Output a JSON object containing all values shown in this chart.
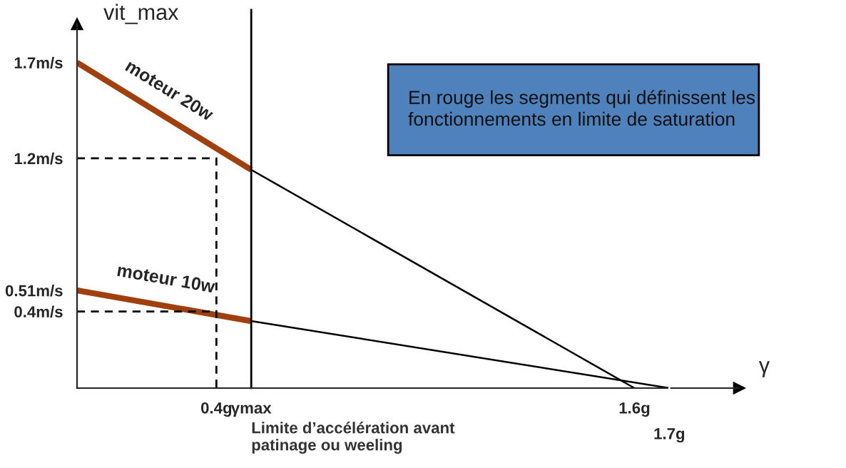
{
  "chart_data": {
    "type": "line",
    "xlabel": "γ",
    "ylabel": "vit_max",
    "xlim": [
      0,
      1.9
    ],
    "ylim": [
      0,
      1.9
    ],
    "xticks": [
      {
        "value": 0.4,
        "label": "0.4g"
      },
      {
        "value": 0.5,
        "label": "γmax"
      },
      {
        "value": 1.6,
        "label": "1.6g"
      }
    ],
    "yticks": [
      {
        "value": 0.4,
        "label": "0.4m/s"
      },
      {
        "value": 0.51,
        "label": "0.51m/s"
      },
      {
        "value": 1.2,
        "label": "1.2m/s"
      },
      {
        "value": 1.7,
        "label": "1.7m/s"
      }
    ],
    "series": [
      {
        "name": "moteur 20w",
        "color": "#a0400f",
        "x": [
          0,
          0.5
        ],
        "values": [
          1.7,
          1.14
        ]
      },
      {
        "color": "#000000",
        "x": [
          0.5,
          1.6
        ],
        "values": [
          1.14,
          0
        ]
      },
      {
        "name": "moteur 10w",
        "color": "#a0400f",
        "x": [
          0,
          0.5
        ],
        "values": [
          0.51,
          0.35
        ]
      },
      {
        "color": "#000000",
        "x": [
          0.5,
          1.7
        ],
        "values": [
          0.35,
          0
        ]
      },
      {
        "color": "#000000",
        "line_style": "dashed",
        "x": [
          0,
          0.4,
          0.4
        ],
        "values": [
          1.2,
          1.2,
          0
        ]
      },
      {
        "color": "#000000",
        "line_style": "dashed",
        "x": [
          0,
          0.4
        ],
        "values": [
          0.4,
          0.4
        ]
      }
    ],
    "ref_lines": [
      {
        "axis": "x",
        "value": 0.5,
        "color": "#000000"
      }
    ],
    "annotations": [
      {
        "text": "1.7g",
        "x": 1.7,
        "y": 0
      },
      "Limite d’accélération avant\npatinage ou weeling",
      "En rouge les segments qui définissent les\nfonctionnements en limite de saturation"
    ],
    "grid": false,
    "legend": false
  }
}
